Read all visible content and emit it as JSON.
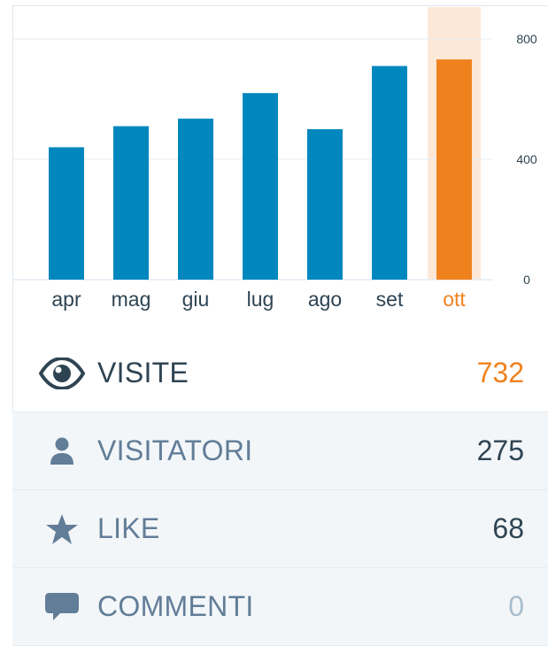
{
  "chart_data": {
    "type": "bar",
    "categories": [
      "apr",
      "mag",
      "giu",
      "lug",
      "ago",
      "set",
      "ott"
    ],
    "values": [
      440,
      510,
      535,
      620,
      500,
      710,
      732
    ],
    "y_ticks": [
      "800",
      "400",
      "0"
    ],
    "ylim": [
      0,
      800
    ],
    "highlight_index": 6,
    "colors": {
      "bar": "#0087be",
      "highlight_bar": "#f0821e",
      "highlight_band": "#fde8d7",
      "grid": "#e4ecf3",
      "label": "#2e4453",
      "tick": "#2e4453"
    }
  },
  "stats": [
    {
      "icon": "eye-icon",
      "label": "VISITE",
      "value": "732"
    },
    {
      "icon": "person-icon",
      "label": "VISITATORI",
      "value": "275"
    },
    {
      "icon": "star-icon",
      "label": "LIKE",
      "value": "68"
    },
    {
      "icon": "comment-icon",
      "label": "COMMENTI",
      "value": "0"
    }
  ],
  "colors": {
    "accent": "#f0821e",
    "icon": "#617d98",
    "icon_selected": "#2e4453"
  }
}
